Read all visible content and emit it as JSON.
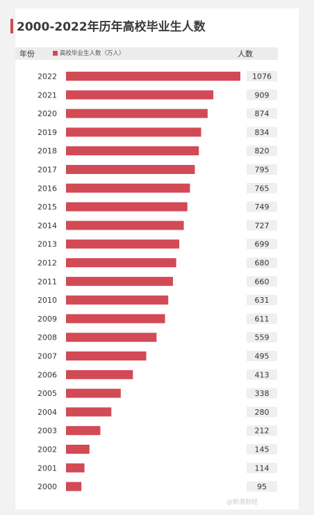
{
  "chart_data": {
    "type": "bar",
    "title": "2000-2022年历年高校毕业生人数",
    "legend": "高校毕业生人数（万人）",
    "col_year_label": "年份",
    "col_value_label": "人数",
    "categories": [
      "2022",
      "2021",
      "2020",
      "2019",
      "2018",
      "2017",
      "2016",
      "2015",
      "2014",
      "2013",
      "2012",
      "2011",
      "2010",
      "2009",
      "2008",
      "2007",
      "2006",
      "2005",
      "2004",
      "2003",
      "2002",
      "2001",
      "2000"
    ],
    "values": [
      1076,
      909,
      874,
      834,
      820,
      795,
      765,
      749,
      727,
      699,
      680,
      660,
      631,
      611,
      559,
      495,
      413,
      338,
      280,
      212,
      145,
      114,
      95
    ],
    "xlim": [
      0,
      1076
    ],
    "bar_color": "#d24a55",
    "orientation": "horizontal"
  },
  "watermark": "@新浪财经"
}
